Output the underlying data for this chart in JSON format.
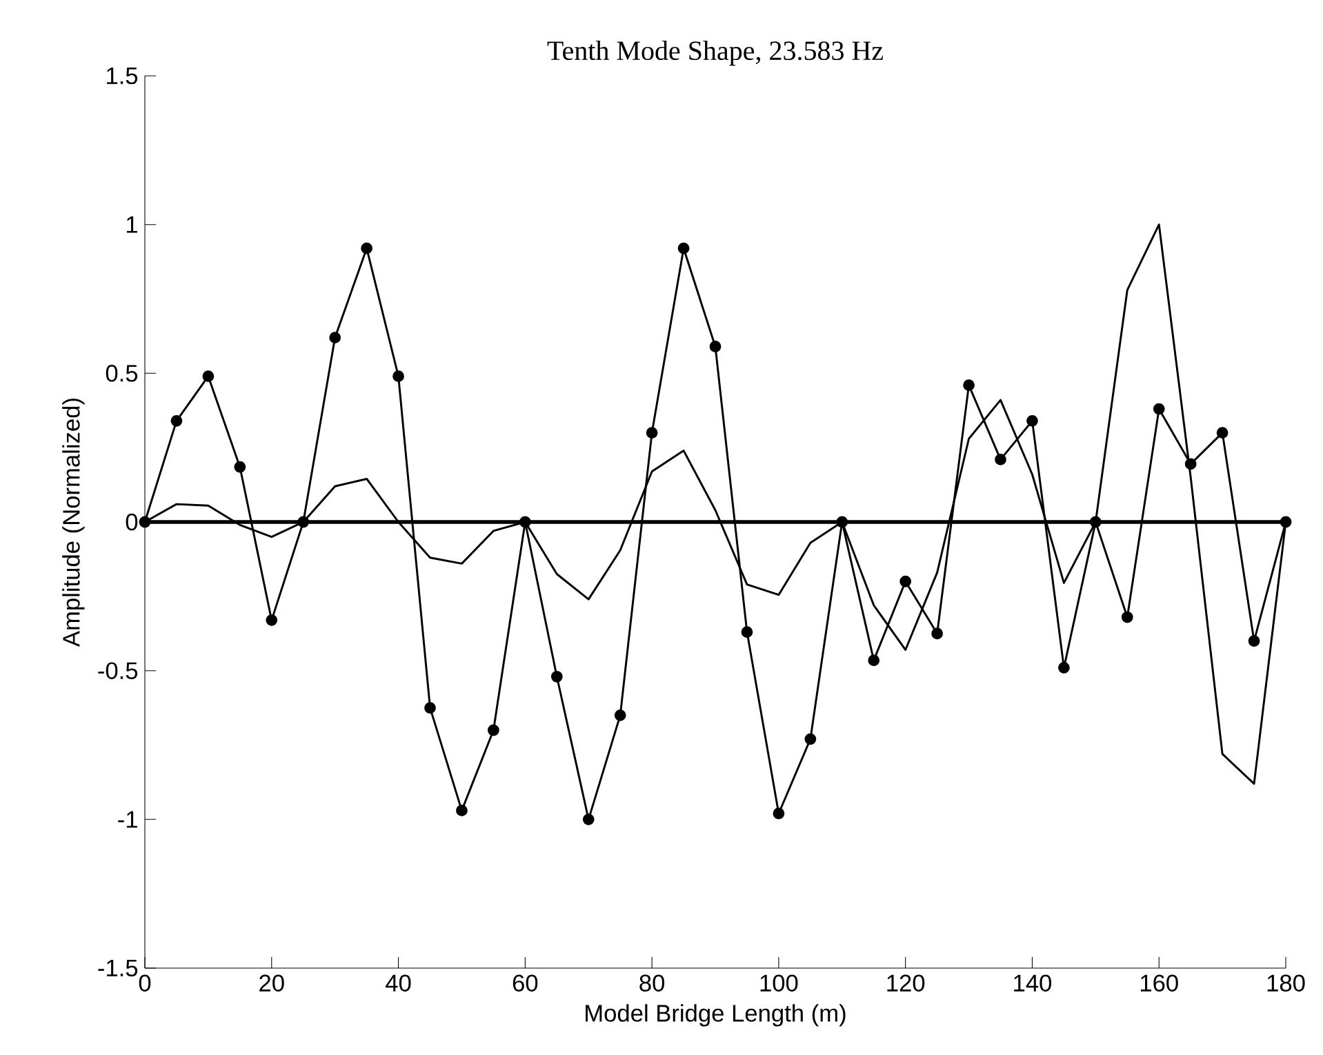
{
  "chart_data": {
    "type": "line",
    "title": "Tenth Mode Shape, 23.583 Hz",
    "xlabel": "Model Bridge Length (m)",
    "ylabel": "Amplitude (Normalized)",
    "x": [
      0,
      5,
      10,
      15,
      20,
      25,
      30,
      35,
      40,
      45,
      50,
      55,
      60,
      65,
      70,
      75,
      80,
      85,
      90,
      95,
      100,
      105,
      110,
      115,
      120,
      125,
      130,
      135,
      140,
      145,
      150,
      155,
      160,
      165,
      170,
      175,
      180
    ],
    "series": [
      {
        "color": "#000000",
        "marker": "circle",
        "values": [
          0,
          0.34,
          0.49,
          0.185,
          -0.33,
          0,
          0.62,
          0.92,
          0.49,
          -0.625,
          -0.97,
          -0.7,
          0,
          -0.52,
          -1.0,
          -0.65,
          0.3,
          0.92,
          0.59,
          -0.37,
          -0.98,
          -0.73,
          0,
          -0.465,
          -0.2,
          -0.375,
          0.46,
          0.21,
          0.34,
          -0.49,
          0,
          -0.32,
          0.38,
          0.195,
          0.3,
          -0.4,
          0
        ]
      },
      {
        "color": "#000000",
        "marker": "none",
        "values": [
          0,
          0.06,
          0.055,
          -0.01,
          -0.05,
          0,
          0.12,
          0.145,
          0.0,
          -0.12,
          -0.14,
          -0.03,
          0,
          -0.175,
          -0.26,
          -0.095,
          0.17,
          0.24,
          0.04,
          -0.21,
          -0.245,
          -0.07,
          0,
          -0.28,
          -0.43,
          -0.17,
          0.28,
          0.41,
          0.16,
          -0.205,
          0,
          0.78,
          1.0,
          0.15,
          -0.78,
          -0.88,
          0
        ]
      }
    ],
    "ref_lines": [
      {
        "axis": "y",
        "value": 0,
        "color": "#000000"
      }
    ],
    "xlim": [
      0,
      180
    ],
    "xticks": [
      0,
      20,
      40,
      60,
      80,
      100,
      120,
      140,
      160,
      180
    ],
    "ylim": [
      -1.5,
      1.5
    ],
    "yticks": [
      -1.5,
      -1,
      -0.5,
      0,
      0.5,
      1,
      1.5
    ],
    "grid": false,
    "line_style": "solid"
  }
}
